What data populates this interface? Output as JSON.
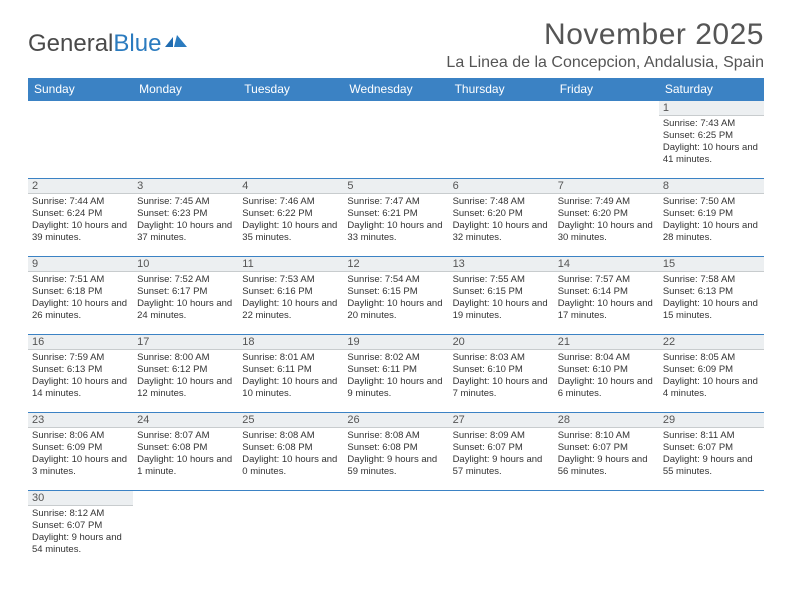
{
  "logo": {
    "text1": "General",
    "text2": "Blue"
  },
  "title": "November 2025",
  "location": "La Linea de la Concepcion, Andalusia, Spain",
  "colors": {
    "header_bg": "#3b82c4",
    "header_text": "#ffffff",
    "cell_border": "#3b82c4",
    "daynum_bg": "#eceff1",
    "text": "#333333"
  },
  "weekdays": [
    "Sunday",
    "Monday",
    "Tuesday",
    "Wednesday",
    "Thursday",
    "Friday",
    "Saturday"
  ],
  "weeks": [
    [
      null,
      null,
      null,
      null,
      null,
      null,
      {
        "n": "1",
        "sunrise": "7:43 AM",
        "sunset": "6:25 PM",
        "daylight": "10 hours and 41 minutes."
      }
    ],
    [
      {
        "n": "2",
        "sunrise": "7:44 AM",
        "sunset": "6:24 PM",
        "daylight": "10 hours and 39 minutes."
      },
      {
        "n": "3",
        "sunrise": "7:45 AM",
        "sunset": "6:23 PM",
        "daylight": "10 hours and 37 minutes."
      },
      {
        "n": "4",
        "sunrise": "7:46 AM",
        "sunset": "6:22 PM",
        "daylight": "10 hours and 35 minutes."
      },
      {
        "n": "5",
        "sunrise": "7:47 AM",
        "sunset": "6:21 PM",
        "daylight": "10 hours and 33 minutes."
      },
      {
        "n": "6",
        "sunrise": "7:48 AM",
        "sunset": "6:20 PM",
        "daylight": "10 hours and 32 minutes."
      },
      {
        "n": "7",
        "sunrise": "7:49 AM",
        "sunset": "6:20 PM",
        "daylight": "10 hours and 30 minutes."
      },
      {
        "n": "8",
        "sunrise": "7:50 AM",
        "sunset": "6:19 PM",
        "daylight": "10 hours and 28 minutes."
      }
    ],
    [
      {
        "n": "9",
        "sunrise": "7:51 AM",
        "sunset": "6:18 PM",
        "daylight": "10 hours and 26 minutes."
      },
      {
        "n": "10",
        "sunrise": "7:52 AM",
        "sunset": "6:17 PM",
        "daylight": "10 hours and 24 minutes."
      },
      {
        "n": "11",
        "sunrise": "7:53 AM",
        "sunset": "6:16 PM",
        "daylight": "10 hours and 22 minutes."
      },
      {
        "n": "12",
        "sunrise": "7:54 AM",
        "sunset": "6:15 PM",
        "daylight": "10 hours and 20 minutes."
      },
      {
        "n": "13",
        "sunrise": "7:55 AM",
        "sunset": "6:15 PM",
        "daylight": "10 hours and 19 minutes."
      },
      {
        "n": "14",
        "sunrise": "7:57 AM",
        "sunset": "6:14 PM",
        "daylight": "10 hours and 17 minutes."
      },
      {
        "n": "15",
        "sunrise": "7:58 AM",
        "sunset": "6:13 PM",
        "daylight": "10 hours and 15 minutes."
      }
    ],
    [
      {
        "n": "16",
        "sunrise": "7:59 AM",
        "sunset": "6:13 PM",
        "daylight": "10 hours and 14 minutes."
      },
      {
        "n": "17",
        "sunrise": "8:00 AM",
        "sunset": "6:12 PM",
        "daylight": "10 hours and 12 minutes."
      },
      {
        "n": "18",
        "sunrise": "8:01 AM",
        "sunset": "6:11 PM",
        "daylight": "10 hours and 10 minutes."
      },
      {
        "n": "19",
        "sunrise": "8:02 AM",
        "sunset": "6:11 PM",
        "daylight": "10 hours and 9 minutes."
      },
      {
        "n": "20",
        "sunrise": "8:03 AM",
        "sunset": "6:10 PM",
        "daylight": "10 hours and 7 minutes."
      },
      {
        "n": "21",
        "sunrise": "8:04 AM",
        "sunset": "6:10 PM",
        "daylight": "10 hours and 6 minutes."
      },
      {
        "n": "22",
        "sunrise": "8:05 AM",
        "sunset": "6:09 PM",
        "daylight": "10 hours and 4 minutes."
      }
    ],
    [
      {
        "n": "23",
        "sunrise": "8:06 AM",
        "sunset": "6:09 PM",
        "daylight": "10 hours and 3 minutes."
      },
      {
        "n": "24",
        "sunrise": "8:07 AM",
        "sunset": "6:08 PM",
        "daylight": "10 hours and 1 minute."
      },
      {
        "n": "25",
        "sunrise": "8:08 AM",
        "sunset": "6:08 PM",
        "daylight": "10 hours and 0 minutes."
      },
      {
        "n": "26",
        "sunrise": "8:08 AM",
        "sunset": "6:08 PM",
        "daylight": "9 hours and 59 minutes."
      },
      {
        "n": "27",
        "sunrise": "8:09 AM",
        "sunset": "6:07 PM",
        "daylight": "9 hours and 57 minutes."
      },
      {
        "n": "28",
        "sunrise": "8:10 AM",
        "sunset": "6:07 PM",
        "daylight": "9 hours and 56 minutes."
      },
      {
        "n": "29",
        "sunrise": "8:11 AM",
        "sunset": "6:07 PM",
        "daylight": "9 hours and 55 minutes."
      }
    ],
    [
      {
        "n": "30",
        "sunrise": "8:12 AM",
        "sunset": "6:07 PM",
        "daylight": "9 hours and 54 minutes."
      },
      null,
      null,
      null,
      null,
      null,
      null
    ]
  ],
  "labels": {
    "sunrise": "Sunrise:",
    "sunset": "Sunset:",
    "daylight": "Daylight:"
  }
}
